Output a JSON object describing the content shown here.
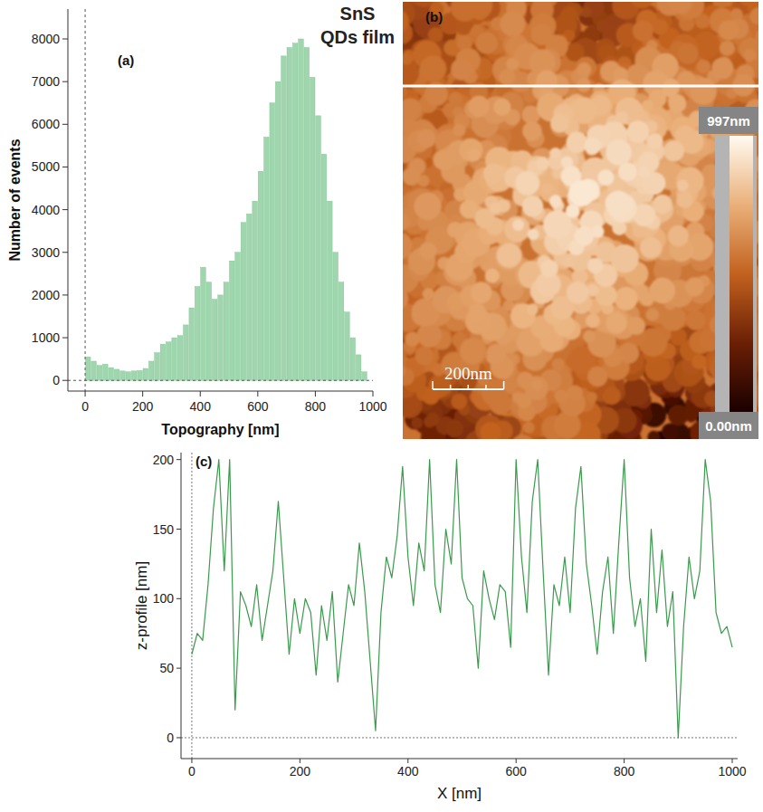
{
  "chart_data": [
    {
      "type": "histogram",
      "panel_label": "(a)",
      "xlabel": "Topography [nm]",
      "ylabel": "Number of events",
      "bins": [
        0,
        20,
        40,
        60,
        80,
        100,
        120,
        140,
        160,
        180,
        200,
        220,
        240,
        260,
        280,
        300,
        320,
        340,
        360,
        380,
        400,
        420,
        440,
        460,
        480,
        500,
        520,
        540,
        560,
        580,
        600,
        620,
        640,
        660,
        680,
        700,
        720,
        740,
        760,
        780,
        800,
        820,
        840,
        860,
        880,
        900,
        920,
        940,
        960,
        980
      ],
      "counts": [
        550,
        450,
        350,
        380,
        300,
        260,
        220,
        200,
        220,
        230,
        280,
        450,
        650,
        850,
        900,
        1000,
        1050,
        1300,
        1700,
        2200,
        2650,
        2300,
        1900,
        2000,
        2300,
        2800,
        3000,
        3700,
        3900,
        4200,
        4900,
        5700,
        6500,
        7000,
        7600,
        7800,
        7900,
        8000,
        7800,
        7100,
        6200,
        5300,
        4200,
        3000,
        2300,
        1600,
        1000,
        600,
        200
      ],
      "color": "#9fd6ad",
      "xlim": [
        -60,
        1000
      ],
      "ylim": [
        -250,
        8700
      ],
      "xticks": [
        0,
        200,
        400,
        600,
        800,
        1000
      ],
      "yticks": [
        0,
        1000,
        2000,
        3000,
        4000,
        5000,
        6000,
        7000,
        8000
      ]
    },
    {
      "type": "image",
      "panel_label": "(b)",
      "title": "SnS QDs film",
      "xlim": [
        0,
        1000
      ],
      "scale_bar": {
        "value": 200,
        "label": "200nm"
      },
      "colorbar": {
        "range": [
          0,
          997
        ],
        "ticks": [
          {
            "value": 997,
            "label": "997nm"
          },
          {
            "value": 0,
            "label": "0.00nm"
          }
        ]
      }
    },
    {
      "type": "line",
      "panel_label": "(c)",
      "xlabel": "X [nm]",
      "ylabel": "z-profile [nm]",
      "x": [
        0,
        10,
        20,
        30,
        40,
        50,
        60,
        70,
        80,
        90,
        100,
        110,
        120,
        130,
        140,
        150,
        160,
        170,
        180,
        190,
        200,
        210,
        220,
        230,
        240,
        250,
        260,
        270,
        280,
        290,
        300,
        310,
        320,
        330,
        340,
        350,
        360,
        370,
        380,
        390,
        400,
        410,
        420,
        430,
        440,
        450,
        460,
        470,
        480,
        490,
        500,
        510,
        520,
        530,
        540,
        550,
        560,
        570,
        580,
        590,
        600,
        610,
        620,
        630,
        640,
        650,
        660,
        670,
        680,
        690,
        700,
        710,
        720,
        730,
        740,
        750,
        760,
        770,
        780,
        790,
        800,
        810,
        820,
        830,
        840,
        850,
        860,
        870,
        880,
        890,
        900,
        910,
        920,
        930,
        940,
        950,
        960,
        970,
        980,
        990,
        1000
      ],
      "values": [
        60,
        75,
        70,
        110,
        165,
        200,
        120,
        200,
        20,
        105,
        95,
        80,
        110,
        70,
        95,
        120,
        170,
        115,
        60,
        100,
        75,
        100,
        90,
        45,
        95,
        70,
        105,
        40,
        75,
        110,
        95,
        140,
        105,
        55,
        5,
        90,
        130,
        115,
        145,
        195,
        130,
        95,
        140,
        120,
        200,
        110,
        90,
        150,
        125,
        200,
        115,
        100,
        95,
        50,
        120,
        100,
        85,
        110,
        105,
        65,
        200,
        130,
        90,
        170,
        200,
        120,
        45,
        110,
        95,
        130,
        90,
        165,
        195,
        125,
        95,
        60,
        105,
        130,
        75,
        140,
        200,
        115,
        80,
        100,
        55,
        150,
        90,
        135,
        80,
        105,
        0,
        80,
        130,
        100,
        120,
        200,
        170,
        90,
        75,
        80,
        65
      ],
      "color": "#3b9a4c",
      "xlim": [
        -20,
        1010
      ],
      "ylim": [
        -15,
        205
      ],
      "xticks": [
        0,
        200,
        400,
        600,
        800,
        1000
      ],
      "yticks": [
        0,
        50,
        100,
        150,
        200
      ]
    }
  ]
}
